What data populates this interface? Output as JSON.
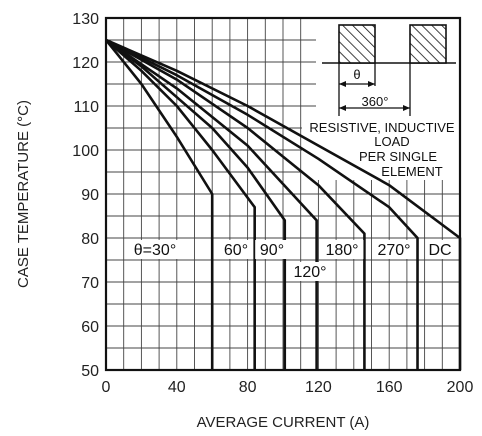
{
  "chart_data": {
    "type": "line",
    "xlabel": "AVERAGE CURRENT (A)",
    "ylabel": "CASE TEMPERATURE (°C)",
    "xlim": [
      0,
      200
    ],
    "ylim": [
      50,
      130
    ],
    "xticks": [
      0,
      40,
      80,
      120,
      160,
      200
    ],
    "yticks": [
      50,
      60,
      70,
      80,
      90,
      100,
      110,
      120,
      130
    ],
    "grid": true,
    "annotation": {
      "theta": "θ",
      "period": "360°",
      "conditions": [
        "RESISTIVE, INDUCTIVE",
        "LOAD",
        "PER SINGLE",
        "ELEMENT"
      ]
    },
    "series": [
      {
        "name": "θ=30°",
        "x": [
          0,
          20,
          40,
          60,
          60
        ],
        "y": [
          125,
          115,
          103,
          90,
          50
        ]
      },
      {
        "name": "60°",
        "x": [
          0,
          20,
          40,
          60,
          84,
          84
        ],
        "y": [
          125,
          118,
          110,
          100,
          87,
          50
        ]
      },
      {
        "name": "90°",
        "x": [
          0,
          20,
          40,
          60,
          80,
          101,
          101
        ],
        "y": [
          125,
          119,
          112,
          105,
          96,
          84,
          50
        ]
      },
      {
        "name": "120°",
        "x": [
          0,
          40,
          80,
          119,
          119
        ],
        "y": [
          125,
          114,
          101,
          84,
          50
        ]
      },
      {
        "name": "180°",
        "x": [
          0,
          40,
          80,
          120,
          146,
          146
        ],
        "y": [
          125,
          116,
          105,
          92,
          81,
          50
        ]
      },
      {
        "name": "270°",
        "x": [
          0,
          40,
          80,
          120,
          160,
          176,
          176
        ],
        "y": [
          125,
          117,
          108,
          98,
          87,
          80,
          50
        ]
      },
      {
        "name": "DC",
        "x": [
          0,
          40,
          80,
          120,
          160,
          200,
          200
        ],
        "y": [
          125,
          118,
          110,
          101,
          92,
          80,
          50
        ]
      }
    ]
  }
}
